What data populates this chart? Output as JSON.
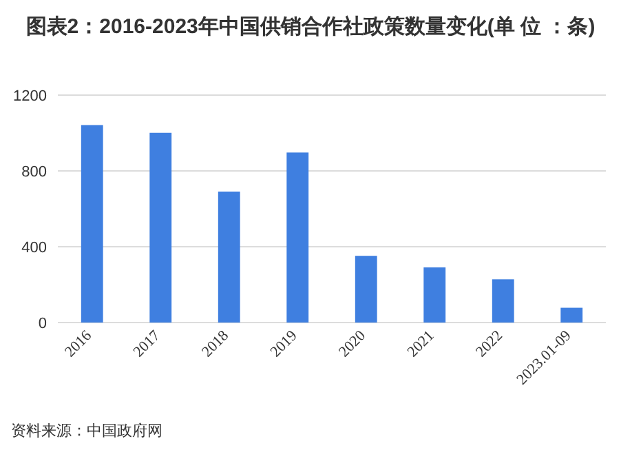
{
  "chart_data": {
    "type": "bar",
    "title": "图表2：2016-2023年中国供销合作社政策数量变化(单 位 ：条)",
    "categories": [
      "2016",
      "2017",
      "2018",
      "2019",
      "2020",
      "2021",
      "2022",
      "2023.01-09"
    ],
    "values": [
      1042,
      1001,
      691,
      897,
      352,
      291,
      228,
      78
    ],
    "color": "#3f7fe0",
    "ylim": [
      0,
      1200
    ],
    "yticks": [
      0,
      400,
      800,
      1200
    ],
    "grid": "y",
    "annotations": [
      "资料来源：中国政府网"
    ]
  }
}
